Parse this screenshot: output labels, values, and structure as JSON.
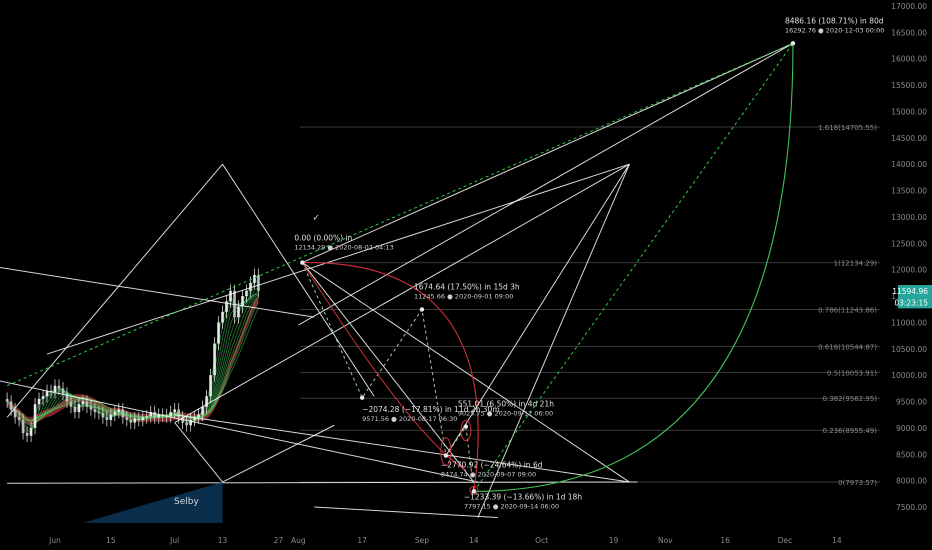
{
  "chart_data": {
    "type": "line",
    "title": "",
    "xlabel": "",
    "ylabel": "",
    "ylim": [
      7200,
      17000
    ],
    "grid": false,
    "legend": "none",
    "colors": {
      "background": "#000000",
      "up": "#26a69a",
      "down": "#ef5350",
      "fib": "#3a3a3a",
      "gann": "#ffffff",
      "dashed": "#2ecc40",
      "arc": "#d0303a",
      "price_label_bg": "#2c2c2c"
    },
    "y_ticks": [
      7500,
      8000,
      8500,
      9000,
      9500,
      10000,
      10500,
      11000,
      11500,
      12000,
      12500,
      13000,
      13500,
      14000,
      14500,
      15000,
      15500,
      16000,
      16500,
      17000
    ],
    "y_tick_labels": [
      "7500.00",
      "8000.00",
      "8500.00",
      "9000.00",
      "9500.00",
      "10000.00",
      "10500.00",
      "11000.00",
      "11500.00",
      "12000.00",
      "12500.00",
      "13000.00",
      "13500.00",
      "14000.00",
      "14500.00",
      "15000.00",
      "15500.00",
      "16000.00",
      "16500.00",
      "17000.00"
    ],
    "x_ticks": [
      {
        "label": "Jun",
        "date": "2020-06-01"
      },
      {
        "label": "15",
        "date": "2020-06-15"
      },
      {
        "label": "Jul",
        "date": "2020-07-01"
      },
      {
        "label": "13",
        "date": "2020-07-13"
      },
      {
        "label": "27",
        "date": "2020-07-27"
      },
      {
        "label": "Aug",
        "date": "2020-08-01"
      },
      {
        "label": "17",
        "date": "2020-08-17"
      },
      {
        "label": "Sep",
        "date": "2020-09-01"
      },
      {
        "label": "14",
        "date": "2020-09-14"
      },
      {
        "label": "Oct",
        "date": "2020-10-01"
      },
      {
        "label": "19",
        "date": "2020-10-19"
      },
      {
        "label": "Nov",
        "date": "2020-11-01"
      },
      {
        "label": "16",
        "date": "2020-11-16"
      },
      {
        "label": "Dec",
        "date": "2020-12-01"
      },
      {
        "label": "14",
        "date": "2020-12-14"
      }
    ],
    "fib_levels": [
      {
        "label": "1.618(14705.55)",
        "value": 14705.55
      },
      {
        "label": "1(12134.29)",
        "value": 12134.29
      },
      {
        "label": "0.786(11243.86)",
        "value": 11243.86
      },
      {
        "label": "0.618(10544.87)",
        "value": 10544.87
      },
      {
        "label": "0.5(10053.91)",
        "value": 10053.91
      },
      {
        "label": "0.382(9562.95)",
        "value": 9562.95
      },
      {
        "label": "0.236(8955.49)",
        "value": 8955.49
      },
      {
        "label": "0(7973.57)",
        "value": 7973.57
      }
    ],
    "price_labels": [
      {
        "text": "11594.96",
        "value": 11594.96,
        "color": "#26a69a"
      },
      {
        "text": "03:23:15",
        "value": 11380,
        "color": "#26a69a"
      }
    ],
    "annotations": [
      {
        "line1": "8486.16 (108.71%) in 80d",
        "line2": "16292.76 ● 2020-12-03 00:00",
        "date": "2020-12-03",
        "value": 16292.76
      },
      {
        "line1": "0.00 (0.00%) in",
        "line2": "12134.29 ● 2020-08-02 04:13",
        "date": "2020-08-02",
        "value": 12134.29
      },
      {
        "line1": "1674.64 (17.50%) in 15d 3h",
        "line2": "11245.66 ● 2020-09-01 09:00",
        "date": "2020-09-01",
        "value": 11245.66
      },
      {
        "line1": "−2074.28 (−17.81%) in 11d 2h 30m",
        "line2": "9571.56 ● 2020-08-17 06:30",
        "date": "2020-08-17",
        "value": 9571.56
      },
      {
        "line1": "551.01 (6.50%) in 4d 21h",
        "line2": "9025.75 ● 2020-09-12 06:00",
        "date": "2020-09-12",
        "value": 9025.75
      },
      {
        "line1": "−2770.92 (−24.64%) in 6d",
        "line2": "8474.74 ● 2020-09-07 09:00",
        "date": "2020-09-07",
        "value": 8474.74
      },
      {
        "line1": "−1233.39 (−13.66%) in 1d 18h",
        "line2": "7797.15 ● 2020-09-14 06:00",
        "date": "2020-09-14",
        "value": 7797.15
      }
    ],
    "selby_label": "Selby",
    "series": [
      {
        "type": "candles",
        "x_start": "2020-05-20",
        "values_close": [
          9500,
          9350,
          9200,
          9150,
          8900,
          8850,
          9000,
          9450,
          9550,
          9600,
          9700,
          9680,
          9800,
          9750,
          9650,
          9500,
          9400,
          9300,
          9450,
          9500,
          9400,
          9350,
          9300,
          9280,
          9200,
          9150,
          9250,
          9300,
          9350,
          9200,
          9150,
          9100,
          9180,
          9150,
          9200,
          9220,
          9300,
          9200,
          9250,
          9240,
          9220,
          9300,
          9350,
          9200,
          9100,
          9050,
          9150,
          9200,
          9250,
          9400,
          9600,
          10000,
          10600,
          11000,
          11200,
          11400,
          11600,
          11100,
          11300,
          11500,
          11600,
          11750,
          11900,
          11594.96
        ]
      }
    ]
  }
}
